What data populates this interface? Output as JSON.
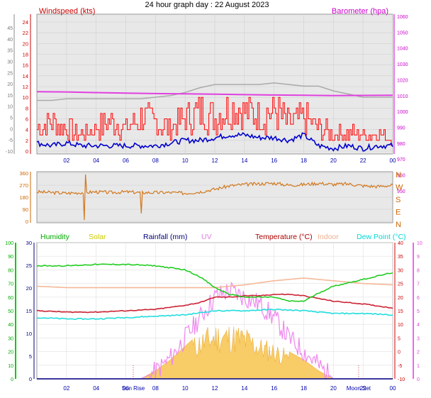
{
  "chart_data": [
    {
      "type": "line",
      "title": "24 hour graph day : 22 August 2023",
      "x_tick_labels": [
        "02",
        "04",
        "06",
        "08",
        "10",
        "12",
        "14",
        "16",
        "18",
        "20",
        "22",
        "00"
      ],
      "x_hours": [
        2,
        4,
        6,
        8,
        10,
        12,
        14,
        16,
        18,
        20,
        22,
        24
      ],
      "xlim": [
        0,
        24
      ],
      "left_axis_label": "Windspeed (kts)",
      "left_outer_ticks": [
        "45",
        "40",
        "35",
        "30",
        "25",
        "20",
        "15",
        "10",
        "5",
        "0",
        "-5",
        "-10"
      ],
      "left_outer_values": [
        45,
        40,
        35,
        30,
        25,
        20,
        15,
        10,
        5,
        0,
        -5,
        -10
      ],
      "left_inner_ticks": [
        "24",
        "22",
        "20",
        "18",
        "16",
        "14",
        "12",
        "10",
        "8",
        "6",
        "4",
        "2",
        "0"
      ],
      "left_inner_values": [
        24,
        22,
        20,
        18,
        16,
        14,
        12,
        10,
        8,
        6,
        4,
        2,
        0
      ],
      "ylim_kts": [
        0,
        25
      ],
      "right_axis_label": "Barometer (hpa)",
      "right_ticks": [
        "1060",
        "1050",
        "1040",
        "1030",
        "1020",
        "1010",
        "1000",
        "990",
        "980",
        "970",
        "960",
        "950"
      ],
      "right_ticks_lower": [
        "980",
        "970",
        "960",
        "950",
        "940"
      ],
      "baro_ylim": [
        975,
        1060
      ],
      "series": [
        {
          "name": "Barometer (hpa)",
          "color": "#e040e0",
          "x": [
            0,
            2,
            4,
            6,
            8,
            10,
            12,
            14,
            16,
            18,
            20,
            22,
            24
          ],
          "values": [
            1012.5,
            1012.3,
            1011.9,
            1011.6,
            1011.3,
            1011.1,
            1010.9,
            1010.6,
            1010.4,
            1010.2,
            1010.0,
            1010.1,
            1010.2
          ]
        },
        {
          "name": "Gust",
          "color": "#ff0000",
          "x": [
            0,
            1,
            2,
            3,
            4,
            5,
            6,
            7,
            8,
            9,
            10,
            11,
            12,
            13,
            14,
            15,
            16,
            17,
            18,
            19,
            20,
            21,
            22,
            23,
            24
          ],
          "values": [
            4,
            5,
            4,
            3,
            4,
            5,
            4,
            6,
            5,
            4,
            6,
            7,
            6,
            8,
            7,
            6,
            7,
            5,
            6,
            4,
            3,
            3,
            3,
            3,
            2
          ]
        },
        {
          "name": "Windspeed",
          "color": "#0000cc",
          "x": [
            0,
            1,
            2,
            3,
            4,
            5,
            6,
            7,
            8,
            9,
            10,
            11,
            12,
            13,
            14,
            15,
            16,
            17,
            18,
            19,
            20,
            21,
            22,
            23,
            24
          ],
          "values": [
            1.5,
            1,
            1.5,
            1,
            1,
            1,
            1,
            1,
            1,
            1.5,
            2,
            2,
            2.5,
            3,
            3,
            2.5,
            2.5,
            2,
            3,
            1,
            0.5,
            1,
            0.5,
            1,
            1
          ]
        },
        {
          "name": "Grey trace",
          "color": "#aaaaaa",
          "x": [
            0,
            1,
            2,
            3,
            4,
            5,
            6,
            7,
            8,
            9,
            10,
            11,
            12,
            13,
            14,
            15,
            16,
            17,
            18,
            19,
            20,
            21,
            22,
            23,
            24
          ],
          "values": [
            1007,
            1007,
            1008,
            1008,
            1008,
            1008,
            1008,
            1008,
            1009,
            1010,
            1012,
            1015,
            1017,
            1017,
            1017,
            1017,
            1018,
            1017,
            1016,
            1016,
            1013,
            1011,
            1009,
            1009,
            1009
          ]
        }
      ]
    },
    {
      "type": "line",
      "y_ticks": [
        "360",
        "270",
        "180",
        "90",
        "0"
      ],
      "y_values": [
        360,
        270,
        180,
        90,
        0
      ],
      "right_labels": [
        "N",
        "W",
        "S",
        "E",
        "N"
      ],
      "xlim": [
        0,
        24
      ],
      "ylim": [
        0,
        360
      ],
      "series": [
        {
          "name": "Wind direction",
          "color": "#d2781e",
          "x": [
            0,
            1,
            2,
            3,
            4,
            5,
            6,
            7,
            8,
            9,
            10,
            11,
            12,
            13,
            14,
            15,
            16,
            17,
            18,
            19,
            20,
            21,
            22,
            23,
            24
          ],
          "values": [
            220,
            215,
            210,
            215,
            220,
            215,
            220,
            215,
            215,
            215,
            210,
            220,
            240,
            265,
            275,
            280,
            285,
            270,
            275,
            285,
            275,
            280,
            265,
            260,
            270
          ]
        }
      ]
    },
    {
      "type": "line",
      "x_tick_labels": [
        "02",
        "04",
        "06",
        "08",
        "10",
        "12",
        "14",
        "16",
        "18",
        "20",
        "22",
        "00"
      ],
      "x_hours": [
        2,
        4,
        6,
        8,
        10,
        12,
        14,
        16,
        18,
        20,
        22,
        24
      ],
      "annotations": [
        {
          "text": "Sun Rise",
          "hour": 6.5
        },
        {
          "text": "Moon Set",
          "hour": 21.7
        }
      ],
      "legend": [
        {
          "text": "Humidity",
          "color": "#00aa00"
        },
        {
          "text": "Solar",
          "color": "#cccc00"
        },
        {
          "text": "Rainfall (mm)",
          "color": "#000080"
        },
        {
          "text": "UV",
          "color": "#e080e0"
        },
        {
          "text": "Temperature (°C)",
          "color": "#aa0000"
        },
        {
          "text": "Indoor",
          "color": "#f0b090"
        },
        {
          "text": "Dew Point (°C)",
          "color": "#00d8d8"
        }
      ],
      "humidity_ticks": [
        "100",
        "90",
        "80",
        "70",
        "60",
        "50",
        "40",
        "30",
        "20",
        "10",
        "0"
      ],
      "rain_ticks": [
        "30",
        "25",
        "20",
        "15",
        "10",
        "5",
        "0"
      ],
      "temp_ticks": [
        "40",
        "35",
        "30",
        "25",
        "20",
        "15",
        "10",
        "5",
        "0",
        "-5",
        "-10"
      ],
      "uv_ticks": [
        "10",
        "9",
        "8",
        "7",
        "6",
        "5",
        "4",
        "3",
        "2",
        "1",
        "0"
      ],
      "xlim": [
        0,
        24
      ],
      "temp_ylim": [
        -10,
        40
      ],
      "series": [
        {
          "name": "Humidity",
          "color": "#22cc22",
          "x": [
            0,
            2,
            4,
            6,
            8,
            10,
            11,
            12,
            13,
            14,
            15,
            16,
            17,
            18,
            19,
            20,
            22,
            24
          ],
          "values": [
            83,
            83,
            84,
            84,
            83,
            80,
            75,
            67,
            62,
            60,
            60,
            60,
            57,
            57,
            63,
            68,
            73,
            78
          ]
        },
        {
          "name": "Indoor",
          "color": "#f4b898",
          "x": [
            0,
            2,
            4,
            6,
            8,
            10,
            12,
            14,
            16,
            18,
            20,
            22,
            24
          ],
          "values": [
            24,
            23.5,
            23.5,
            23.5,
            23.5,
            23.5,
            23.5,
            24.5,
            26,
            27,
            26,
            25,
            24.5
          ]
        },
        {
          "name": "Temperature (°C)",
          "color": "#cc2233",
          "x": [
            0,
            2,
            4,
            6,
            8,
            10,
            11,
            12,
            13,
            14,
            15,
            16,
            17,
            18,
            19,
            20,
            22,
            24
          ],
          "values": [
            15,
            14.5,
            14.5,
            15,
            15.5,
            17,
            18,
            20,
            20,
            20.5,
            20.5,
            21,
            21,
            20.5,
            19.5,
            18.5,
            17.5,
            16
          ]
        },
        {
          "name": "Dew Point (°C)",
          "color": "#22dddd",
          "x": [
            0,
            2,
            4,
            6,
            8,
            10,
            12,
            14,
            16,
            18,
            20,
            22,
            24
          ],
          "values": [
            12.5,
            12,
            12,
            12.5,
            13,
            13.5,
            15,
            15,
            15.5,
            15,
            14,
            14,
            13.5
          ]
        },
        {
          "name": "UV",
          "color": "#ee88ee",
          "x": [
            0,
            7,
            8,
            9,
            10,
            11,
            12,
            13,
            14,
            15,
            16,
            17,
            18,
            19,
            20,
            24
          ],
          "values": [
            0,
            0,
            0.5,
            1.5,
            3,
            4.5,
            6,
            6.5,
            6,
            5.5,
            4.5,
            3,
            2,
            1,
            0,
            0
          ]
        },
        {
          "name": "Solar",
          "color": "#f0c040",
          "x": [
            0,
            7,
            8,
            9,
            10,
            11,
            12,
            13,
            14,
            15,
            16,
            17,
            18,
            19,
            20,
            24
          ],
          "values": [
            0,
            0,
            3,
            7,
            12,
            17,
            20,
            20,
            19,
            15,
            13,
            10,
            7,
            3,
            0,
            0
          ]
        },
        {
          "name": "Rainfall (mm)",
          "color": "#000080",
          "x": [
            0,
            24
          ],
          "values": [
            0,
            0
          ]
        }
      ]
    }
  ]
}
